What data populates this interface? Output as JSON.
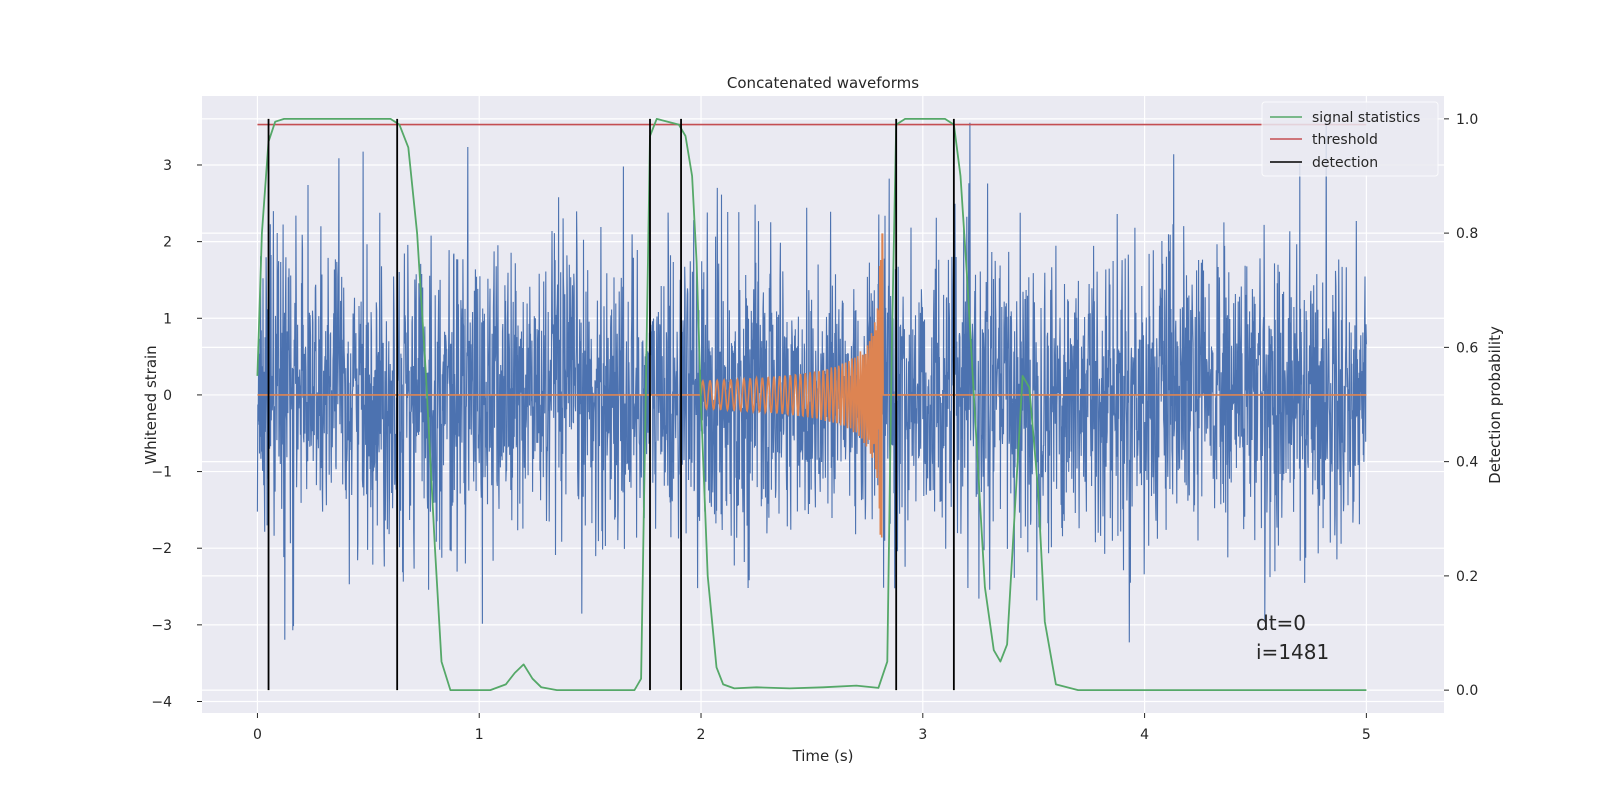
{
  "chart_data": {
    "type": "line",
    "title": "Concatenated waveforms",
    "xlabel": "Time (s)",
    "ylabel": "Whitened strain",
    "ylabel_right": "Detection probability",
    "xlim": [
      -0.25,
      5.35
    ],
    "ylim": [
      -4.15,
      3.9
    ],
    "ylim_right": [
      -0.04,
      1.04
    ],
    "xticks": [
      0,
      1,
      2,
      3,
      4,
      5
    ],
    "yticks": [
      -4,
      -3,
      -2,
      -1,
      0,
      1,
      2,
      3
    ],
    "yticks_right": [
      0.0,
      0.2,
      0.4,
      0.6,
      0.8,
      1.0
    ],
    "xtick_labels": [
      "0",
      "1",
      "2",
      "3",
      "4",
      "5"
    ],
    "ytick_labels": [
      "−4",
      "−3",
      "−2",
      "−1",
      "0",
      "1",
      "2",
      "3"
    ],
    "ytick_labels_right": [
      "0.0",
      "0.2",
      "0.4",
      "0.6",
      "0.8",
      "1.0"
    ],
    "grid": true,
    "legend_position": "top-right",
    "colors": {
      "background": "#eaeaf2",
      "grid": "#ffffff",
      "strain": "#4c72b0",
      "waveform": "#dd8452",
      "signal_statistics": "#55a868",
      "threshold": "#c44e52",
      "detection": "#000000"
    },
    "series": [
      {
        "name": "",
        "role": "whitened-strain",
        "axis": "left",
        "x_range": [
          0,
          5
        ],
        "amplitude": 1.0
      },
      {
        "name": "",
        "role": "injected-waveform",
        "axis": "left",
        "x_start": 2.0,
        "x_end": 2.82,
        "peak": 2.1
      },
      {
        "name": "signal statistics",
        "axis": "right",
        "x": [
          0.0,
          0.02,
          0.05,
          0.08,
          0.12,
          0.5,
          0.6,
          0.64,
          0.68,
          0.72,
          0.76,
          0.8,
          0.83,
          0.87,
          0.95,
          1.05,
          1.12,
          1.16,
          1.2,
          1.24,
          1.28,
          1.35,
          1.6,
          1.7,
          1.73,
          1.75,
          1.77,
          1.8,
          1.9,
          1.93,
          1.96,
          1.98,
          2.0,
          2.03,
          2.07,
          2.1,
          2.15,
          2.25,
          2.4,
          2.55,
          2.7,
          2.8,
          2.84,
          2.86,
          2.88,
          2.92,
          3.1,
          3.14,
          3.17,
          3.2,
          3.25,
          3.28,
          3.32,
          3.35,
          3.38,
          3.42,
          3.45,
          3.48,
          3.52,
          3.55,
          3.6,
          3.7,
          4.0,
          4.5,
          5.0
        ],
        "y": [
          0.55,
          0.8,
          0.96,
          0.995,
          1.0,
          1.0,
          1.0,
          0.99,
          0.95,
          0.8,
          0.55,
          0.25,
          0.05,
          0.0,
          0.0,
          0.0,
          0.01,
          0.03,
          0.045,
          0.02,
          0.005,
          0.0,
          0.0,
          0.0,
          0.02,
          0.5,
          0.97,
          1.0,
          0.99,
          0.97,
          0.9,
          0.75,
          0.5,
          0.2,
          0.04,
          0.01,
          0.003,
          0.005,
          0.003,
          0.005,
          0.008,
          0.004,
          0.05,
          0.6,
          0.99,
          1.0,
          1.0,
          0.99,
          0.9,
          0.72,
          0.38,
          0.18,
          0.07,
          0.05,
          0.08,
          0.35,
          0.55,
          0.53,
          0.35,
          0.12,
          0.01,
          0.0,
          0.0,
          0.0,
          0.0
        ]
      },
      {
        "name": "threshold",
        "axis": "right",
        "x": [
          0,
          5
        ],
        "y": [
          0.99,
          0.99
        ]
      },
      {
        "name": "detection",
        "axis": "right",
        "x": [
          0.05,
          0.63,
          1.77,
          1.91,
          2.88,
          3.14
        ],
        "y_range": [
          0.0,
          1.0
        ]
      }
    ],
    "annotations": [
      {
        "text": "dt=0"
      },
      {
        "text": "i=1481"
      }
    ]
  }
}
